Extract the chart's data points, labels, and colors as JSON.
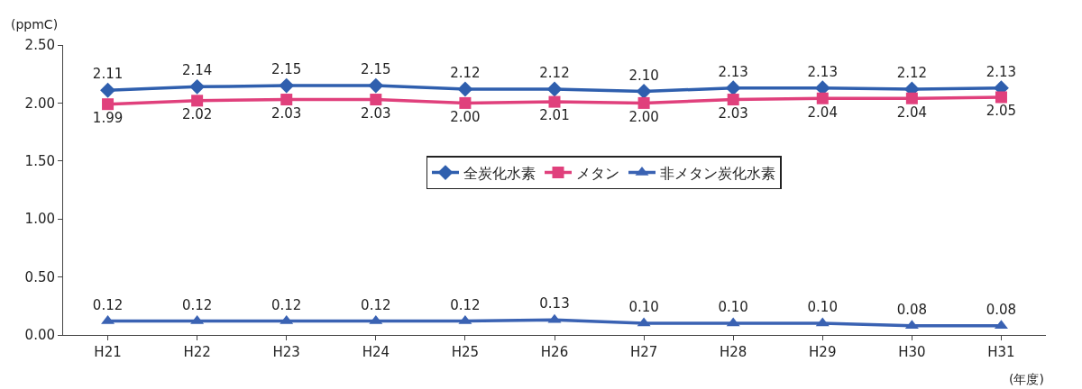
{
  "chart_data": {
    "type": "line",
    "ylabel": "(ppmC)",
    "xlabel": "(年度)",
    "categories": [
      "H21",
      "H22",
      "H23",
      "H24",
      "H25",
      "H26",
      "H27",
      "H28",
      "H29",
      "H30",
      "H31"
    ],
    "series": [
      {
        "name": "全炭化水素",
        "color": "#2f5fae",
        "marker": "diamond",
        "values": [
          2.11,
          2.14,
          2.15,
          2.15,
          2.12,
          2.12,
          2.1,
          2.13,
          2.13,
          2.12,
          2.13
        ],
        "value_labels": [
          "2.11",
          "2.14",
          "2.15",
          "2.15",
          "2.12",
          "2.12",
          "2.10",
          "2.13",
          "2.13",
          "2.12",
          "2.13"
        ]
      },
      {
        "name": "メタン",
        "color": "#e0407c",
        "marker": "square",
        "values": [
          1.99,
          2.02,
          2.03,
          2.03,
          2.0,
          2.01,
          2.0,
          2.03,
          2.04,
          2.04,
          2.05
        ],
        "value_labels": [
          "1.99",
          "2.02",
          "2.03",
          "2.03",
          "2.00",
          "2.01",
          "2.00",
          "2.03",
          "2.04",
          "2.04",
          "2.05"
        ]
      },
      {
        "name": "非メタン炭化水素",
        "color": "#3a62b3",
        "marker": "triangle",
        "values": [
          0.12,
          0.12,
          0.12,
          0.12,
          0.12,
          0.13,
          0.1,
          0.1,
          0.1,
          0.08,
          0.08
        ],
        "value_labels": [
          "0.12",
          "0.12",
          "0.12",
          "0.12",
          "0.12",
          "0.13",
          "0.10",
          "0.10",
          "0.10",
          "0.08",
          "0.08"
        ]
      }
    ],
    "ylim": [
      0,
      2.5
    ],
    "yticks": [
      {
        "value": 0,
        "label": "0.00"
      },
      {
        "value": 0.5,
        "label": "0.50"
      },
      {
        "value": 1,
        "label": "1.00"
      },
      {
        "value": 1.5,
        "label": "1.50"
      },
      {
        "value": 2,
        "label": "2.00"
      },
      {
        "value": 2.5,
        "label": "2.50"
      }
    ],
    "legend": "center",
    "line_style": "solid"
  }
}
